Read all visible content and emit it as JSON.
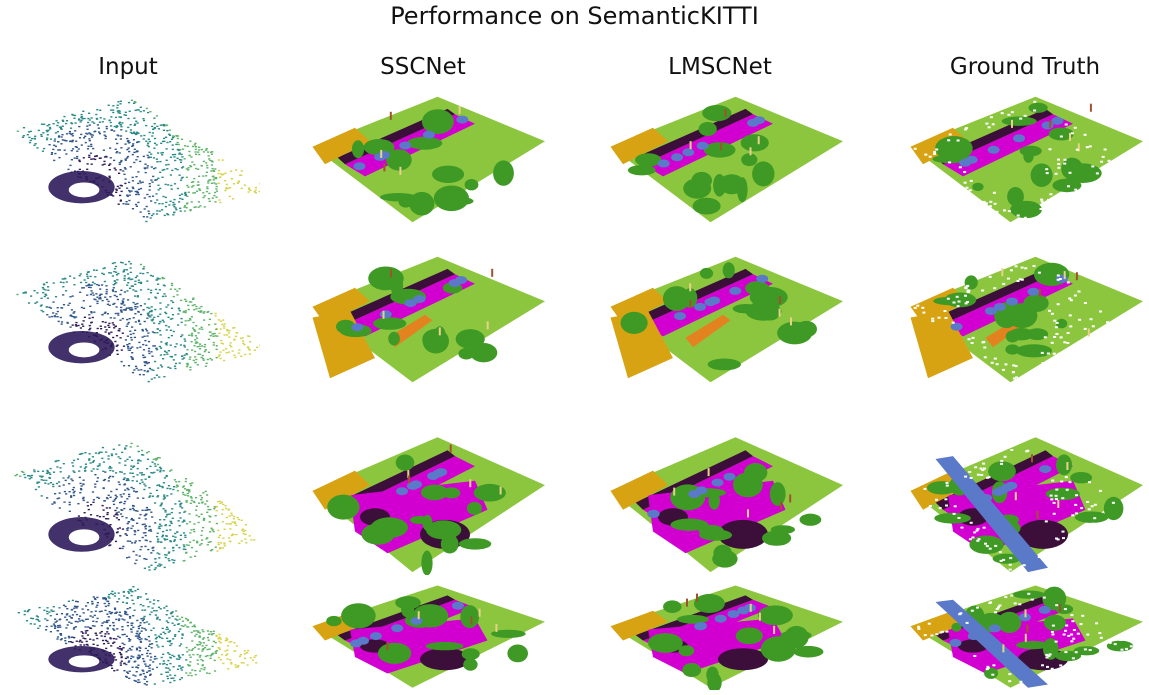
{
  "figure": {
    "title": "Performance on SemanticKITTI",
    "columns": [
      "Input",
      "SSCNet",
      "LMSCNet",
      "Ground Truth"
    ],
    "rows": 4,
    "colors": {
      "vegetation": "#3f9a25",
      "terrain": "#8cc63f",
      "road": "#d100d1",
      "sidewalk": "#3b0f3a",
      "building": "#d8a313",
      "car": "#5a79c8",
      "parking": "#e38320",
      "trunk": "#a0522d",
      "pole": "#e8d28a",
      "viridis_dark": "#2d1b5a",
      "viridis_mid": "#2a8a86",
      "viridis_light": "#d6d24a"
    }
  }
}
